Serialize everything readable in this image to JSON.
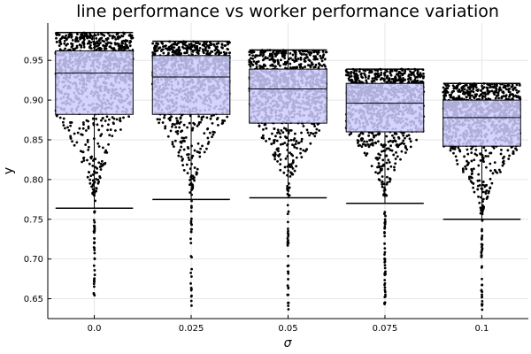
{
  "chart_data": {
    "type": "box",
    "title": "line performance vs worker performance variation",
    "xlabel": "σ",
    "ylabel": "y",
    "categories": [
      "0.0",
      "0.025",
      "0.05",
      "0.075",
      "0.1"
    ],
    "x": [
      0.0,
      0.025,
      0.05,
      0.075,
      0.1
    ],
    "xlim": [
      -0.012,
      0.112
    ],
    "ylim": [
      0.625,
      0.997
    ],
    "yticks": [
      0.65,
      0.7,
      0.75,
      0.8,
      0.85,
      0.9,
      0.95
    ],
    "ytick_labels": [
      "0.65",
      "0.70",
      "0.75",
      "0.80",
      "0.85",
      "0.90",
      "0.95"
    ],
    "grid": true,
    "legend": "none",
    "box_fill": "#ccccff",
    "point_color": "#000000",
    "boxes": [
      {
        "x": 0.0,
        "whisker_low": 0.764,
        "q1": 0.882,
        "median": 0.934,
        "q3": 0.962,
        "whisker_high": 0.985,
        "outliers_min": 0.645
      },
      {
        "x": 0.025,
        "whisker_low": 0.775,
        "q1": 0.882,
        "median": 0.929,
        "q3": 0.956,
        "whisker_high": 0.974,
        "outliers_min": 0.641
      },
      {
        "x": 0.05,
        "whisker_low": 0.777,
        "q1": 0.871,
        "median": 0.914,
        "q3": 0.939,
        "whisker_high": 0.963,
        "outliers_min": 0.636
      },
      {
        "x": 0.075,
        "whisker_low": 0.77,
        "q1": 0.86,
        "median": 0.896,
        "q3": 0.921,
        "whisker_high": 0.939,
        "outliers_min": 0.638
      },
      {
        "x": 0.1,
        "whisker_low": 0.75,
        "q1": 0.842,
        "median": 0.878,
        "q3": 0.9,
        "whisker_high": 0.921,
        "outliers_min": 0.636
      }
    ]
  }
}
